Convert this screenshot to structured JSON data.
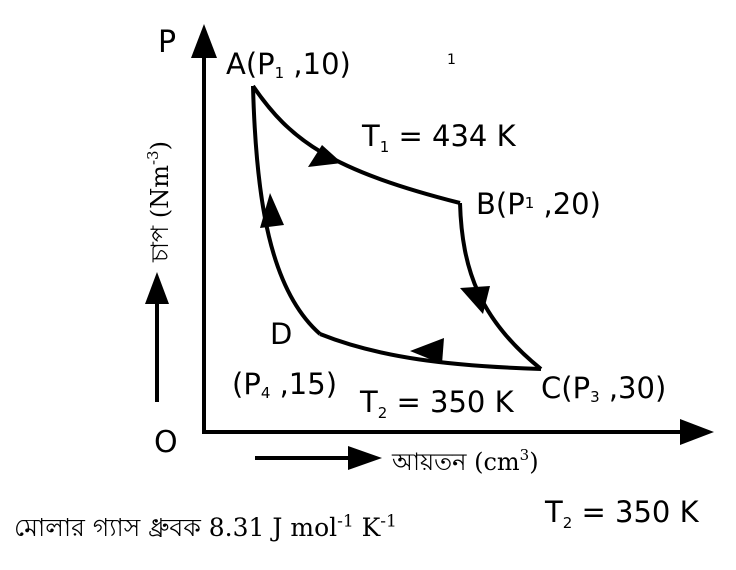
{
  "axes": {
    "origin": "O",
    "y_axis_letter": "P",
    "y_label_main": "চাপ (Nm",
    "y_label_exp": "-3",
    "y_label_close": ")",
    "x_label_main": "আয়তন (cm",
    "x_label_exp": "3",
    "x_label_close": ")"
  },
  "points": {
    "A": {
      "name": "A",
      "open": "(P",
      "sub": "1",
      "rest": " ,10)"
    },
    "B": {
      "name": "B",
      "open": "(P",
      "sub": "1",
      "rest": "  ,20)"
    },
    "C": {
      "name": "C",
      "open": "(P",
      "sub": "3",
      "rest": " ,30)"
    },
    "D": {
      "name": "D",
      "open": "(P",
      "sub": "4",
      "rest": " ,15)"
    }
  },
  "stray_mark": "1",
  "isotherms": {
    "t1": {
      "sym": "T",
      "sub": "1",
      "rest": " = 434 K"
    },
    "t2": {
      "sym": "T",
      "sub": "2",
      "rest": " = 350 K"
    }
  },
  "bottom_temp": {
    "sym": "T",
    "sub": "2",
    "rest": " = 350 K"
  },
  "note": {
    "text": "মোলার গ্যাস ধ্রুবক 8.31 J  mol",
    "exp1": "-1",
    "mid": " K",
    "exp2": "-1"
  }
}
